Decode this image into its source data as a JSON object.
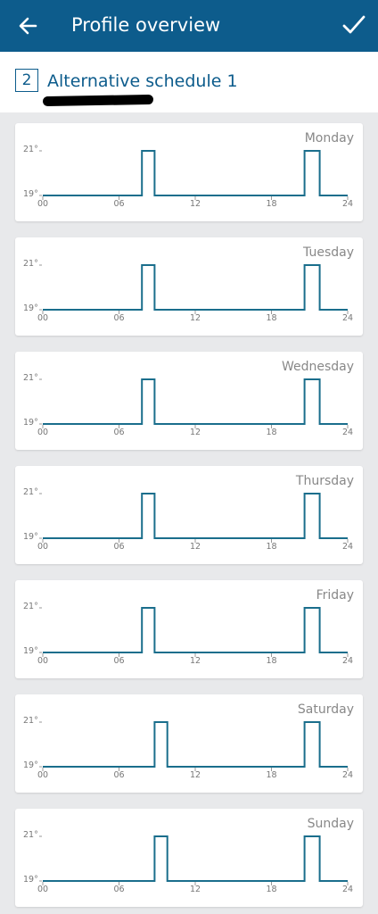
{
  "app": {
    "title": "Profile overview",
    "back_icon": "arrow-left-icon",
    "confirm_icon": "checkmark-icon"
  },
  "profile": {
    "number": "2",
    "name": "Alternative schedule 1"
  },
  "colors": {
    "header": "#0d5c8c",
    "line": "#1a6e8c",
    "background": "#e8e9eb"
  },
  "chart_data": [
    {
      "type": "line",
      "title": "Monday",
      "x": [
        0,
        7.8,
        7.8,
        8.8,
        8.8,
        20.6,
        20.6,
        21.8,
        21.8,
        24
      ],
      "y": [
        19,
        19,
        21,
        21,
        19,
        19,
        21,
        21,
        19,
        19
      ],
      "ylabels": [
        "21°",
        "19°"
      ],
      "xticks": [
        "00",
        "06",
        "12",
        "18",
        "24"
      ],
      "xlim": [
        0,
        24
      ],
      "ylim": [
        19,
        21
      ]
    },
    {
      "type": "line",
      "title": "Tuesday",
      "x": [
        0,
        7.8,
        7.8,
        8.8,
        8.8,
        20.6,
        20.6,
        21.8,
        21.8,
        24
      ],
      "y": [
        19,
        19,
        21,
        21,
        19,
        19,
        21,
        21,
        19,
        19
      ],
      "ylabels": [
        "21°",
        "19°"
      ],
      "xticks": [
        "00",
        "06",
        "12",
        "18",
        "24"
      ],
      "xlim": [
        0,
        24
      ],
      "ylim": [
        19,
        21
      ]
    },
    {
      "type": "line",
      "title": "Wednesday",
      "x": [
        0,
        7.8,
        7.8,
        8.8,
        8.8,
        20.6,
        20.6,
        21.8,
        21.8,
        24
      ],
      "y": [
        19,
        19,
        21,
        21,
        19,
        19,
        21,
        21,
        19,
        19
      ],
      "ylabels": [
        "21°",
        "19°"
      ],
      "xticks": [
        "00",
        "06",
        "12",
        "18",
        "24"
      ],
      "xlim": [
        0,
        24
      ],
      "ylim": [
        19,
        21
      ]
    },
    {
      "type": "line",
      "title": "Thursday",
      "x": [
        0,
        7.8,
        7.8,
        8.8,
        8.8,
        20.6,
        20.6,
        21.8,
        21.8,
        24
      ],
      "y": [
        19,
        19,
        21,
        21,
        19,
        19,
        21,
        21,
        19,
        19
      ],
      "ylabels": [
        "21°",
        "19°"
      ],
      "xticks": [
        "00",
        "06",
        "12",
        "18",
        "24"
      ],
      "xlim": [
        0,
        24
      ],
      "ylim": [
        19,
        21
      ]
    },
    {
      "type": "line",
      "title": "Friday",
      "x": [
        0,
        7.8,
        7.8,
        8.8,
        8.8,
        20.6,
        20.6,
        21.8,
        21.8,
        24
      ],
      "y": [
        19,
        19,
        21,
        21,
        19,
        19,
        21,
        21,
        19,
        19
      ],
      "ylabels": [
        "21°",
        "19°"
      ],
      "xticks": [
        "00",
        "06",
        "12",
        "18",
        "24"
      ],
      "xlim": [
        0,
        24
      ],
      "ylim": [
        19,
        21
      ]
    },
    {
      "type": "line",
      "title": "Saturday",
      "x": [
        0,
        8.8,
        8.8,
        9.8,
        9.8,
        20.6,
        20.6,
        21.8,
        21.8,
        24
      ],
      "y": [
        19,
        19,
        21,
        21,
        19,
        19,
        21,
        21,
        19,
        19
      ],
      "ylabels": [
        "21°",
        "19°"
      ],
      "xticks": [
        "00",
        "06",
        "12",
        "18",
        "24"
      ],
      "xlim": [
        0,
        24
      ],
      "ylim": [
        19,
        21
      ]
    },
    {
      "type": "line",
      "title": "Sunday",
      "x": [
        0,
        8.8,
        8.8,
        9.8,
        9.8,
        20.6,
        20.6,
        21.8,
        21.8,
        24
      ],
      "y": [
        19,
        19,
        21,
        21,
        19,
        19,
        21,
        21,
        19,
        19
      ],
      "ylabels": [
        "21°",
        "19°"
      ],
      "xticks": [
        "00",
        "06",
        "12",
        "18",
        "24"
      ],
      "xlim": [
        0,
        24
      ],
      "ylim": [
        19,
        21
      ]
    }
  ]
}
